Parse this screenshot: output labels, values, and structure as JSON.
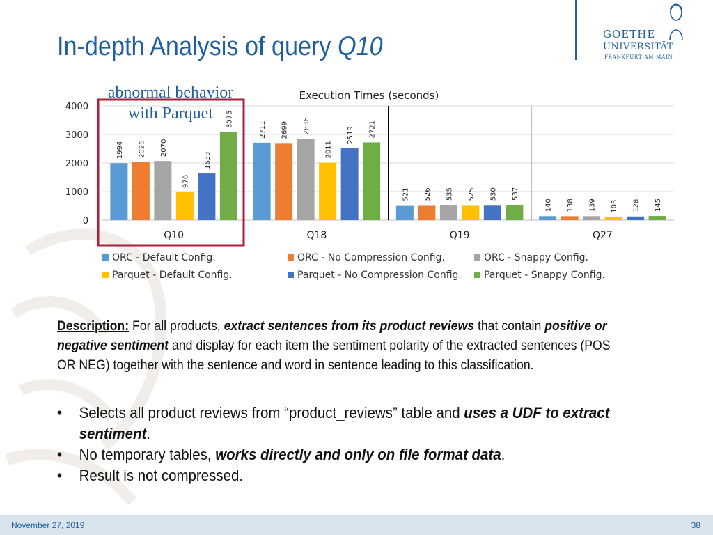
{
  "slide": {
    "title_main": "In-depth Analysis of query ",
    "title_query": "Q10",
    "annotation_line1": "abnormal behavior",
    "annotation_line2": "with Parquet",
    "logo_line1": "GOETHE",
    "logo_line2": "UNIVERSITÄT",
    "logo_line3": "FRANKFURT AM MAIN",
    "description": {
      "label": "Description:",
      "part1": " For all products, ",
      "em1": "extract sentences from its product reviews",
      "part2": " that contain ",
      "em2": "positive or negative sentiment",
      "part3": " and display for each item the sentiment polarity of the extracted sentences (POS OR NEG) together with the sentence and word in sentence leading to this classification."
    },
    "bullets": [
      {
        "bullet": "•",
        "a": "Selects all product reviews from “product_reviews” table and ",
        "em": "uses a UDF to extract sentiment",
        "b": "."
      },
      {
        "bullet": "•",
        "a": "No temporary tables, ",
        "em": "works directly and only on file format data",
        "b": "."
      },
      {
        "bullet": "•",
        "a": "Result is not compressed.",
        "em": "",
        "b": ""
      }
    ],
    "footer_date": "November 27, 2019",
    "page_number": "38"
  },
  "colors": {
    "title": "#1f5f9f",
    "highlight_box": "#a8203a",
    "separator": "#000000"
  },
  "chart_data": {
    "type": "bar",
    "title": "Execution Times (seconds)",
    "categories": [
      "Q10",
      "Q18",
      "Q19",
      "Q27"
    ],
    "ylim": [
      0,
      4000
    ],
    "yticks": [
      0,
      1000,
      2000,
      3000,
      4000
    ],
    "grid": true,
    "legend_position": "bottom",
    "series": [
      {
        "name": "ORC - Default Config.",
        "color": "#5b9bd5",
        "values": [
          1994,
          2711,
          521,
          140
        ]
      },
      {
        "name": "ORC - No Compression Config.",
        "color": "#ed7d31",
        "values": [
          2026,
          2699,
          526,
          138
        ]
      },
      {
        "name": "ORC - Snappy Config.",
        "color": "#a5a5a5",
        "values": [
          2070,
          2836,
          535,
          139
        ]
      },
      {
        "name": "Parquet - Default Config.",
        "color": "#ffc000",
        "values": [
          976,
          2011,
          525,
          103
        ]
      },
      {
        "name": "Parquet - No Compression Config.",
        "color": "#4472c4",
        "values": [
          1633,
          2519,
          530,
          128
        ]
      },
      {
        "name": "Parquet - Snappy Config.",
        "color": "#70ad47",
        "values": [
          3075,
          2721,
          537,
          145
        ]
      }
    ]
  }
}
